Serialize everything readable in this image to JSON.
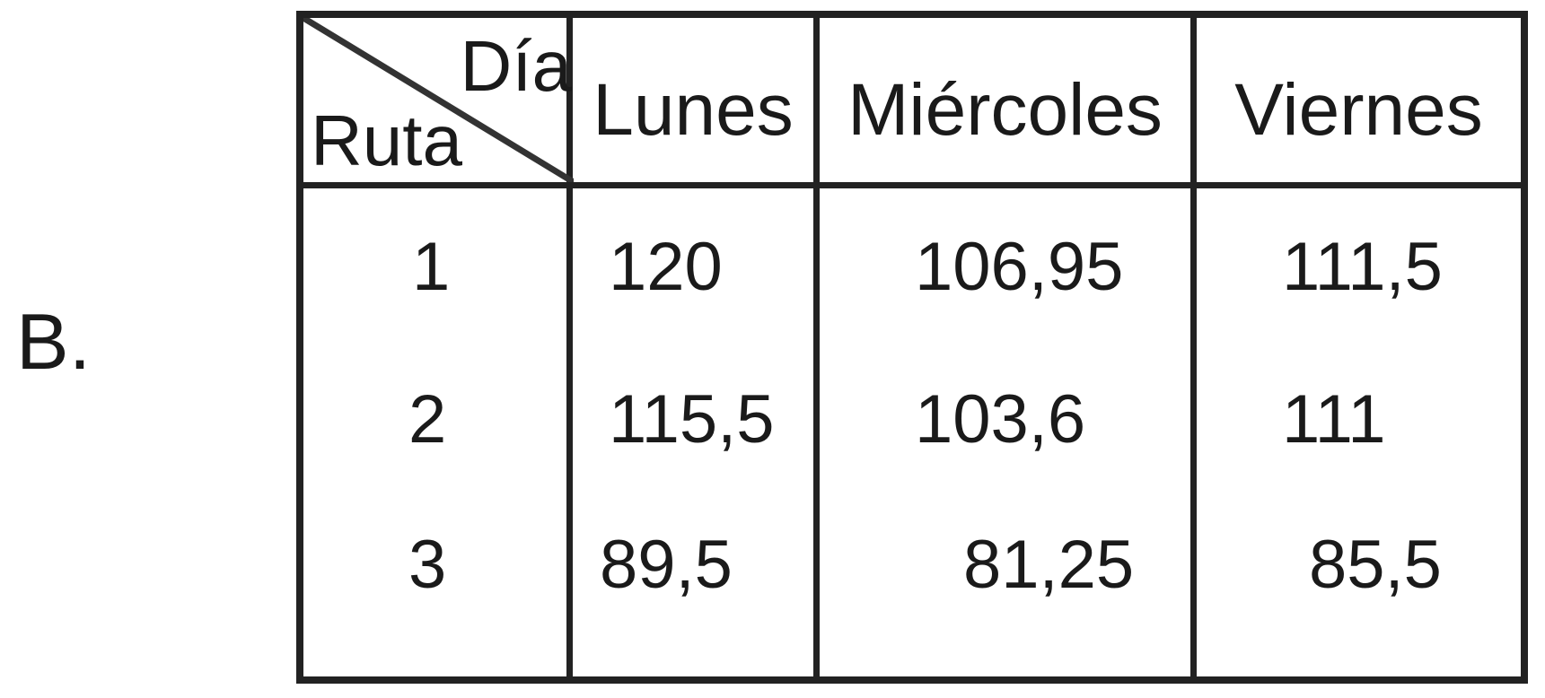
{
  "option_label": "B.",
  "table": {
    "corner": {
      "top_label": "Día",
      "bottom_label": "Ruta"
    },
    "headers": [
      "Lunes",
      "Miércoles",
      "Viernes"
    ],
    "rows": [
      {
        "ruta": "1",
        "values": [
          "120",
          "106,95",
          "111,5"
        ]
      },
      {
        "ruta": "2",
        "values": [
          "115,5",
          "103,6",
          "111"
        ]
      },
      {
        "ruta": "3",
        "values": [
          "89,5",
          "81,25",
          "85,5"
        ]
      }
    ]
  }
}
